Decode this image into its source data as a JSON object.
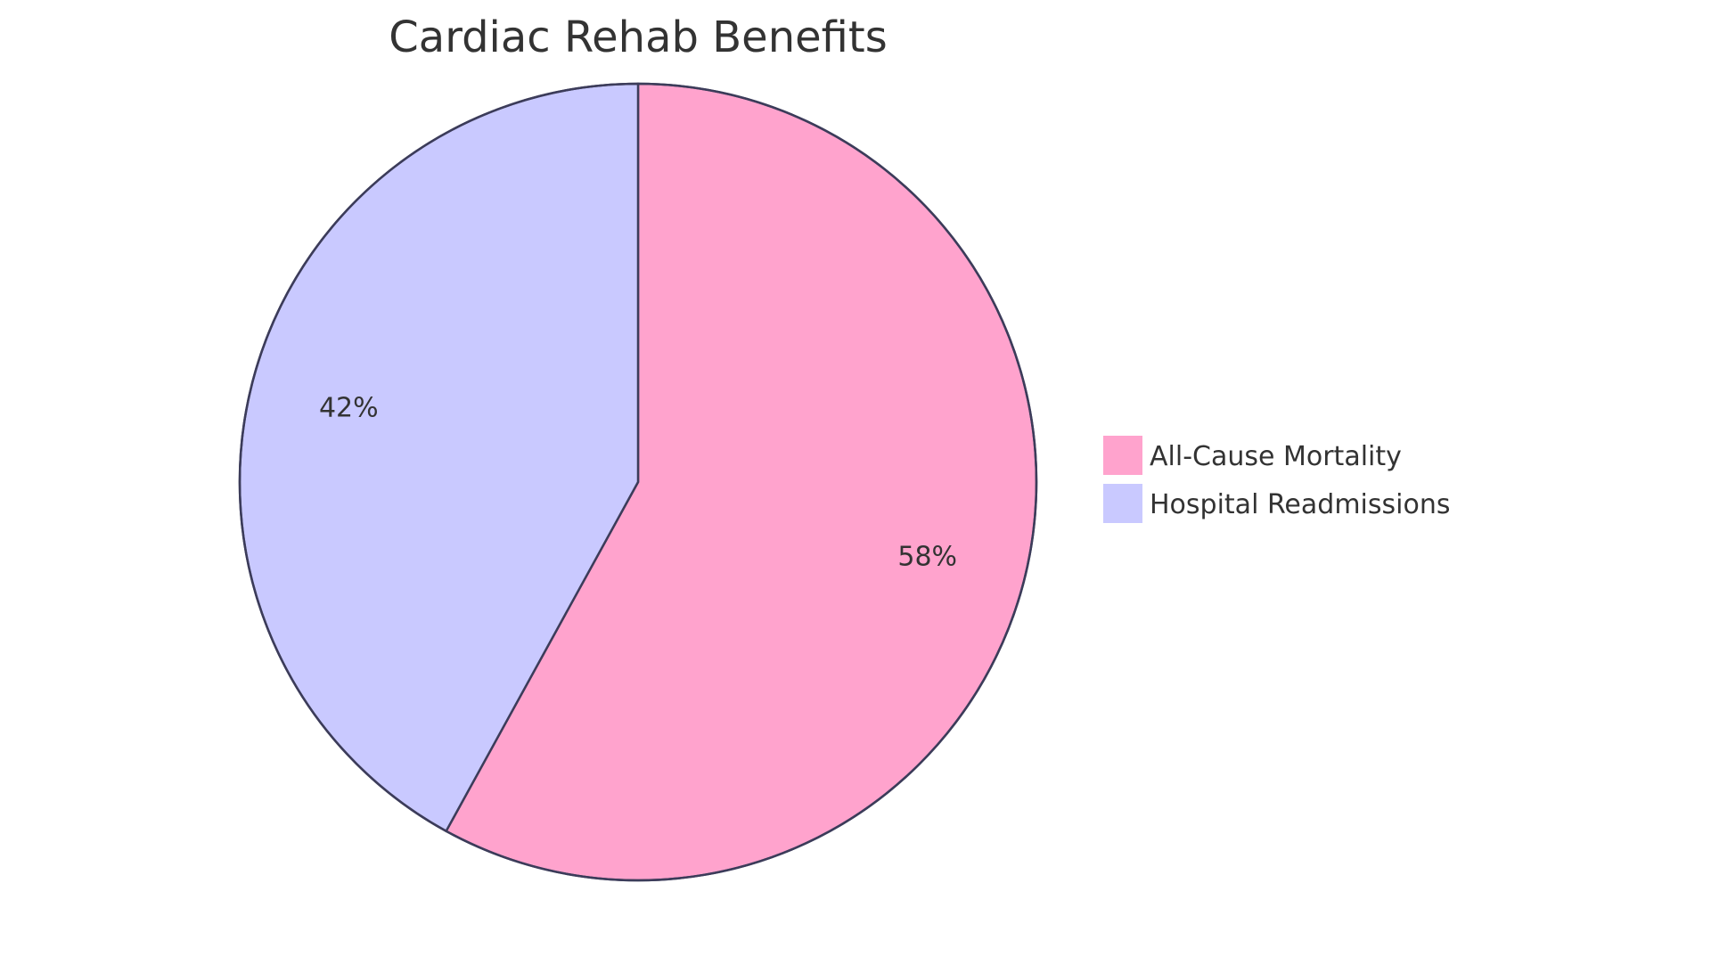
{
  "chart_data": {
    "type": "pie",
    "title": "Cardiac Rehab Benefits",
    "categories": [
      "All-Cause Mortality",
      "Hospital Readmissions"
    ],
    "values": [
      58,
      42
    ],
    "labels": [
      "58%",
      "42%"
    ],
    "colors": [
      "#FFA3CD",
      "#C9C9FF"
    ],
    "stroke_color": "#3C3C5A",
    "legend_position": "right"
  }
}
